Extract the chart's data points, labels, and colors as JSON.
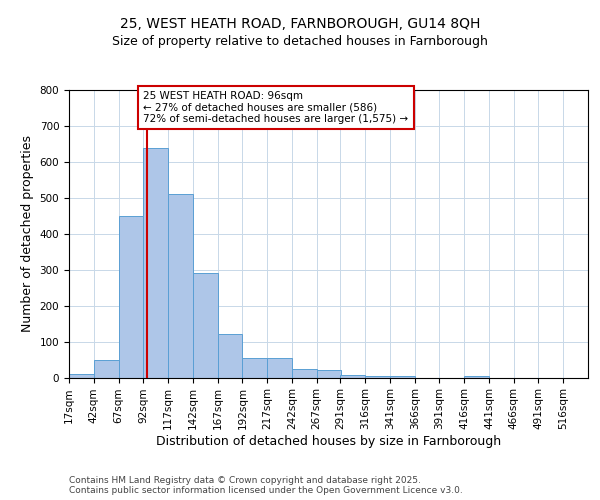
{
  "title_line1": "25, WEST HEATH ROAD, FARNBOROUGH, GU14 8QH",
  "title_line2": "Size of property relative to detached houses in Farnborough",
  "xlabel": "Distribution of detached houses by size in Farnborough",
  "ylabel": "Number of detached properties",
  "bin_edges": [
    17,
    42,
    67,
    92,
    117,
    142,
    167,
    192,
    217,
    242,
    267,
    291,
    316,
    341,
    366,
    391,
    416,
    441,
    466,
    491,
    516
  ],
  "bar_heights": [
    10,
    50,
    450,
    640,
    510,
    290,
    120,
    55,
    55,
    25,
    20,
    7,
    5,
    5,
    0,
    0,
    3,
    0,
    0,
    0
  ],
  "bar_color": "#aec6e8",
  "bar_edgecolor": "#5a9fd4",
  "property_size": 96,
  "vline_color": "#cc0000",
  "annotation_text": "25 WEST HEATH ROAD: 96sqm\n← 27% of detached houses are smaller (586)\n72% of semi-detached houses are larger (1,575) →",
  "annotation_box_color": "#cc0000",
  "ylim": [
    0,
    800
  ],
  "yticks": [
    0,
    100,
    200,
    300,
    400,
    500,
    600,
    700,
    800
  ],
  "grid_color": "#c8d8e8",
  "background_color": "#ffffff",
  "footer_text": "Contains HM Land Registry data © Crown copyright and database right 2025.\nContains public sector information licensed under the Open Government Licence v3.0.",
  "title_fontsize": 10,
  "subtitle_fontsize": 9,
  "axis_label_fontsize": 9,
  "tick_fontsize": 7.5,
  "annotation_fontsize": 7.5,
  "footer_fontsize": 6.5
}
